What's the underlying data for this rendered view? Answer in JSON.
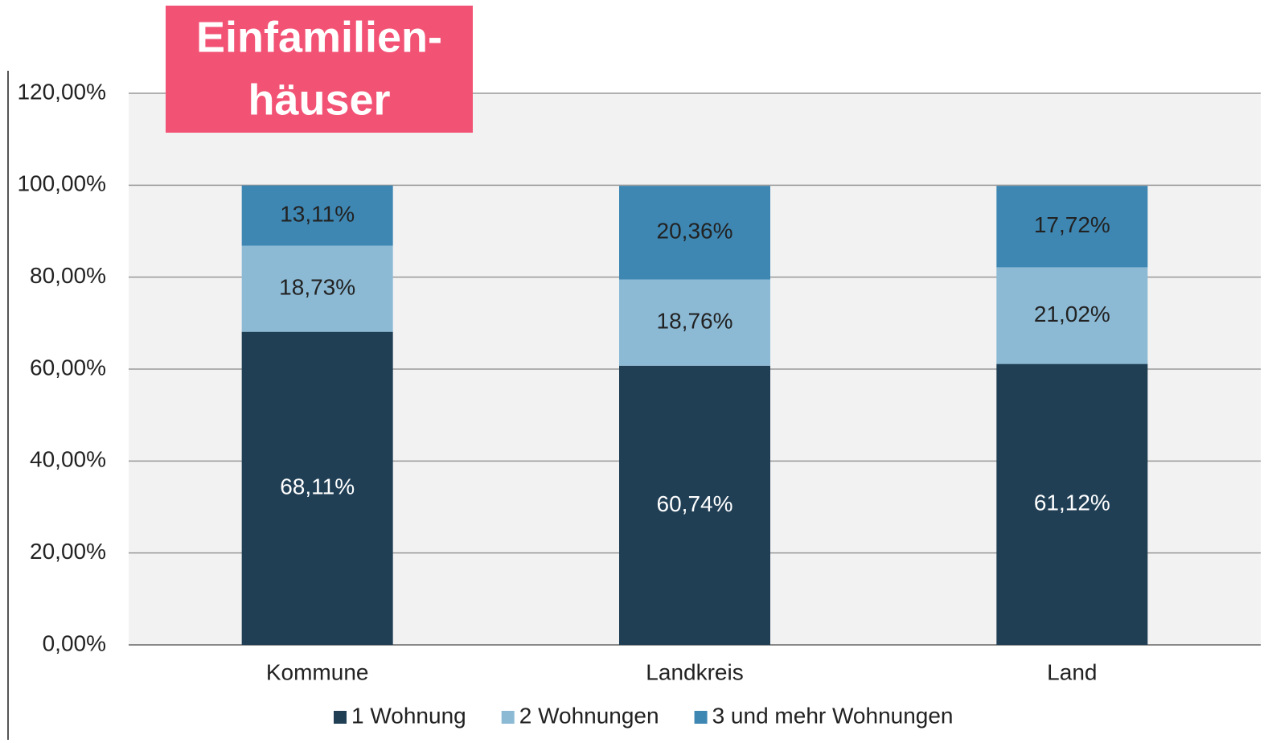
{
  "chart_data": {
    "type": "stacked_bar",
    "title": [
      "Einfamilien-",
      "häuser"
    ],
    "categories": [
      "Kommune",
      "Landkreis",
      "Land"
    ],
    "series": [
      {
        "name": "1 Wohnung",
        "color": "#203f55",
        "label_color": "#ffffff",
        "values": [
          68.11,
          60.74,
          61.12
        ],
        "value_labels": [
          "68,11%",
          "60,74%",
          "61,12%"
        ]
      },
      {
        "name": "2 Wohnungen",
        "color": "#8cbad5",
        "label_color": "#222222",
        "values": [
          18.73,
          18.76,
          21.02
        ],
        "value_labels": [
          "18,73%",
          "18,76%",
          "21,02%"
        ]
      },
      {
        "name": "3 und mehr Wohnungen",
        "color": "#3e87b3",
        "label_color": "#222222",
        "values": [
          13.11,
          20.36,
          17.72
        ],
        "value_labels": [
          "13,11%",
          "20,36%",
          "17,72%"
        ]
      }
    ],
    "ylim": [
      0,
      120
    ],
    "yticks": [
      {
        "value": 0,
        "label": "0,00%"
      },
      {
        "value": 20,
        "label": "20,00%"
      },
      {
        "value": 40,
        "label": "40,00%"
      },
      {
        "value": 60,
        "label": "60,00%"
      },
      {
        "value": 80,
        "label": "80,00%"
      },
      {
        "value": 100,
        "label": "100,00%"
      },
      {
        "value": 120,
        "label": "120,00%"
      }
    ],
    "grid": true,
    "legend": "bottom"
  }
}
